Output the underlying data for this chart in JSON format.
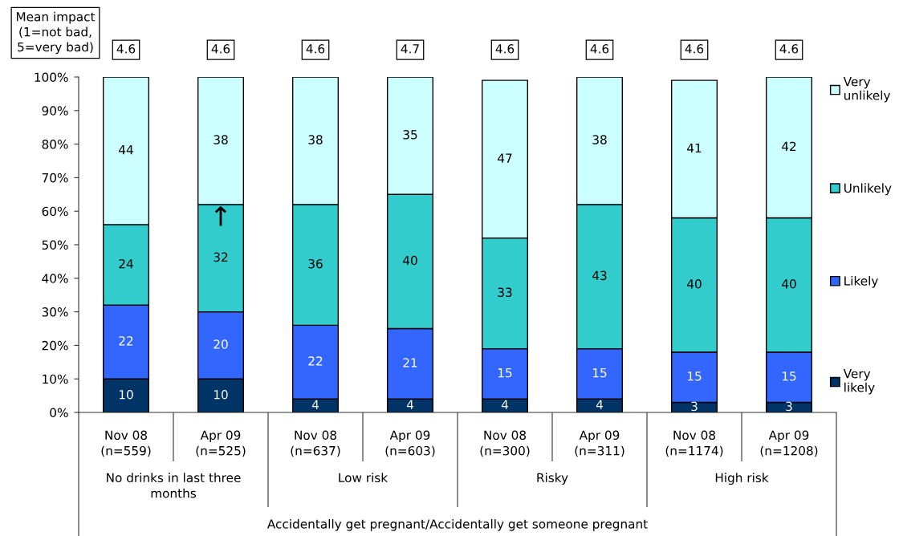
{
  "chart_data": {
    "type": "bar",
    "stacked": true,
    "data_labels": true,
    "legend": "right",
    "categories": [
      "Nov 08\n(n=559)",
      "Apr 09\n(n=525)",
      "Nov 08\n(n=637)",
      "Apr 09\n(n=603)",
      "Nov 08\n(n=300)",
      "Apr 09\n(n=311)",
      "Nov 08\n(n=1174)",
      "Apr 09\n(n=1208)"
    ],
    "series": [
      {
        "name": "Very\nlikely",
        "color": "#003366",
        "values": [
          10,
          10,
          4,
          4,
          4,
          4,
          3,
          3
        ]
      },
      {
        "name": "Likely",
        "color": "#3366ff",
        "values": [
          22,
          20,
          22,
          21,
          15,
          15,
          15,
          15
        ]
      },
      {
        "name": "Unlikely",
        "color": "#33cccc",
        "values": [
          24,
          32,
          36,
          40,
          33,
          43,
          40,
          40
        ]
      },
      {
        "name": "Very\nunlikely",
        "color": "#ccffff",
        "values": [
          44,
          38,
          38,
          35,
          47,
          38,
          41,
          42
        ]
      }
    ],
    "ylim": [
      0,
      100
    ],
    "yticks": [
      {
        "value": 0,
        "label": "0%"
      },
      {
        "value": 10,
        "label": "10%"
      },
      {
        "value": 20,
        "label": "20%"
      },
      {
        "value": 30,
        "label": "30%"
      },
      {
        "value": 40,
        "label": "40%"
      },
      {
        "value": 50,
        "label": "50%"
      },
      {
        "value": 60,
        "label": "60%"
      },
      {
        "value": 70,
        "label": "70%"
      },
      {
        "value": 80,
        "label": "80%"
      },
      {
        "value": 90,
        "label": "90%"
      },
      {
        "value": 100,
        "label": "100%"
      }
    ],
    "annotations": [
      "Mean impact\n(1=not bad,\n5=very bad)",
      "4.6",
      "4.6",
      "4.6",
      "4.7",
      "4.6",
      "4.6",
      "4.6",
      "4.6",
      {
        "text": "↑",
        "x": "Apr 09\n(n=525)",
        "y": 62
      },
      "No drinks in last three\nmonths",
      "Low risk",
      "Risky",
      "High risk",
      "Accidentally get pregnant/Accidentally get someone pregnant"
    ]
  }
}
